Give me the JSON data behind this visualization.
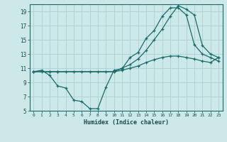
{
  "xlabel": "Humidex (Indice chaleur)",
  "bg_color": "#cce8e8",
  "grid_color": "#b0d4d4",
  "line_color": "#1a6b6b",
  "xlim": [
    -0.5,
    23.5
  ],
  "ylim": [
    5,
    20
  ],
  "xticks": [
    0,
    1,
    2,
    3,
    4,
    5,
    6,
    7,
    8,
    9,
    10,
    11,
    12,
    13,
    14,
    15,
    16,
    17,
    18,
    19,
    20,
    21,
    22,
    23
  ],
  "yticks": [
    5,
    7,
    9,
    11,
    13,
    15,
    17,
    19
  ],
  "line1_x": [
    0,
    1,
    2,
    3,
    4,
    5,
    6,
    7,
    8,
    9,
    10,
    11,
    12,
    13,
    14,
    15,
    16,
    17,
    18,
    19,
    20,
    21,
    22,
    23
  ],
  "line1_y": [
    10.5,
    10.7,
    10.0,
    8.5,
    8.2,
    6.5,
    6.3,
    5.3,
    5.3,
    8.3,
    10.7,
    10.9,
    12.5,
    13.2,
    15.2,
    16.3,
    18.3,
    19.5,
    19.5,
    18.5,
    14.3,
    13.0,
    12.5,
    12.0
  ],
  "line2_x": [
    0,
    2,
    3,
    10,
    11,
    12,
    13,
    14,
    15,
    16,
    17,
    18,
    19,
    20,
    21,
    22,
    23
  ],
  "line2_y": [
    10.5,
    10.5,
    10.5,
    10.5,
    11.0,
    11.5,
    12.3,
    13.5,
    15.0,
    16.5,
    18.3,
    19.8,
    19.3,
    18.5,
    14.2,
    13.0,
    12.5
  ],
  "line3_x": [
    0,
    1,
    2,
    3,
    4,
    5,
    6,
    7,
    8,
    9,
    10,
    11,
    12,
    13,
    14,
    15,
    16,
    17,
    18,
    19,
    20,
    21,
    22,
    23
  ],
  "line3_y": [
    10.5,
    10.5,
    10.5,
    10.5,
    10.5,
    10.5,
    10.5,
    10.5,
    10.5,
    10.5,
    10.5,
    10.7,
    11.0,
    11.3,
    11.8,
    12.2,
    12.5,
    12.7,
    12.7,
    12.5,
    12.3,
    12.0,
    11.8,
    12.5
  ]
}
